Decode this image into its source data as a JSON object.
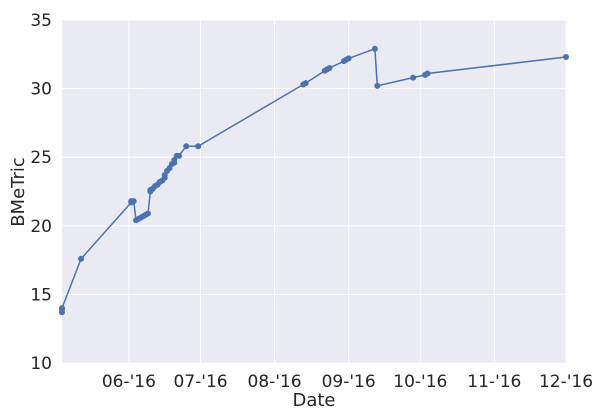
{
  "chart_data": {
    "type": "line",
    "title": "",
    "xlabel": "Date",
    "ylabel": "BMeTric",
    "x_tick_labels": [
      "06-'16",
      "07-'16",
      "08-'16",
      "09-'16",
      "10-'16",
      "11-'16",
      "12-'16"
    ],
    "x_ticks": [
      "2016-06-01",
      "2016-07-01",
      "2016-08-01",
      "2016-09-01",
      "2016-10-01",
      "2016-11-01",
      "2016-12-01"
    ],
    "xlim": [
      "2016-05-04",
      "2016-12-01"
    ],
    "ylim": [
      10,
      35
    ],
    "y_ticks": [
      10,
      15,
      20,
      25,
      30,
      35
    ],
    "grid": true,
    "colors": {
      "background": "#EAEAF2",
      "grid": "#FFFFFF",
      "line": "#4C72B0"
    },
    "series": [
      {
        "x": [
          "2016-05-04",
          "2016-05-04",
          "2016-05-04",
          "2016-05-12",
          "2016-06-02",
          "2016-06-02",
          "2016-06-03",
          "2016-06-04",
          "2016-06-05",
          "2016-06-06",
          "2016-06-07",
          "2016-06-08",
          "2016-06-09",
          "2016-06-10",
          "2016-06-10",
          "2016-06-10",
          "2016-06-11",
          "2016-06-12",
          "2016-06-13",
          "2016-06-14",
          "2016-06-15",
          "2016-06-16",
          "2016-06-16",
          "2016-06-17",
          "2016-06-18",
          "2016-06-19",
          "2016-06-20",
          "2016-06-20",
          "2016-06-21",
          "2016-06-22",
          "2016-06-25",
          "2016-06-30",
          "2016-08-13",
          "2016-08-14",
          "2016-08-22",
          "2016-08-23",
          "2016-08-24",
          "2016-08-30",
          "2016-08-31",
          "2016-09-01",
          "2016-09-12",
          "2016-09-13",
          "2016-09-28",
          "2016-10-03",
          "2016-10-04",
          "2016-12-01"
        ],
        "values": [
          13.7,
          13.9,
          14.0,
          17.6,
          21.7,
          21.8,
          21.8,
          20.4,
          20.5,
          20.6,
          20.7,
          20.8,
          20.9,
          22.5,
          22.6,
          22.6,
          22.7,
          22.9,
          23.0,
          23.2,
          23.3,
          23.5,
          23.7,
          24.0,
          24.2,
          24.5,
          24.6,
          24.8,
          25.1,
          25.1,
          25.8,
          25.8,
          30.3,
          30.4,
          31.3,
          31.4,
          31.5,
          32.0,
          32.1,
          32.2,
          32.9,
          30.2,
          30.8,
          31.0,
          31.1,
          32.3
        ]
      }
    ]
  }
}
